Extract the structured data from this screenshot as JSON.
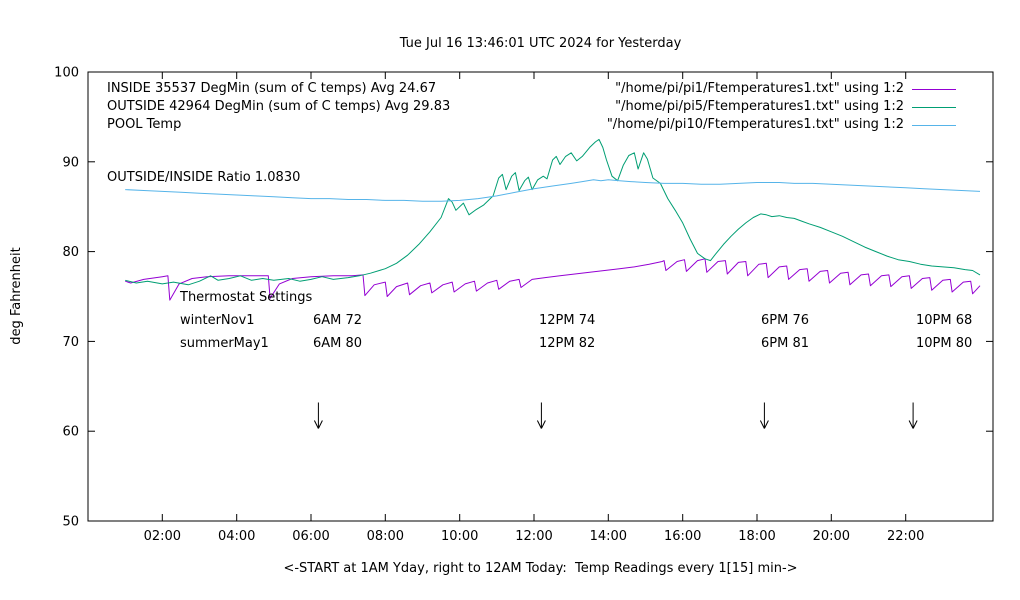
{
  "title": "Tue Jul 16 13:46:01 UTC 2024 for Yesterday",
  "ylabel": "deg Fahrenheit",
  "xlabel": "<-START at 1AM Yday, right to 12AM Today:  Temp Readings every 1[15] min->",
  "ratio_label": "OUTSIDE/INSIDE Ratio 1.0830",
  "legend": {
    "rows": [
      {
        "left": "INSIDE 35537 DegMin (sum of C temps) Avg 24.67",
        "right": "\"/home/pi/pi1/Ftemperatures1.txt\" using 1:2",
        "color": "#9400D3"
      },
      {
        "left": "OUTSIDE 42964 DegMin (sum of C temps) Avg 29.83",
        "right": "\"/home/pi/pi5/Ftemperatures1.txt\" using 1:2",
        "color": "#009E73"
      },
      {
        "left": "POOL Temp",
        "right": "\"/home/pi/pi10/Ftemperatures1.txt\" using 1:2",
        "color": "#56B4E9"
      }
    ]
  },
  "thermostat": {
    "heading": "Thermostat Settings",
    "rows": [
      {
        "name": "winterNov1",
        "settings": [
          "6AM 72",
          "12PM 74",
          "6PM 76",
          "10PM 68"
        ]
      },
      {
        "name": "summerMay1",
        "settings": [
          "6AM 80",
          "12PM 82",
          "6PM 81",
          "10PM 80"
        ]
      }
    ]
  },
  "chart_data": {
    "type": "line",
    "title": "Tue Jul 16 13:46:01 UTC 2024 for Yesterday",
    "xlabel": "<-START at 1AM Yday, right to 12AM Today:  Temp Readings every 1[15] min->",
    "ylabel": "deg Fahrenheit",
    "xlim": [
      0,
      24.35
    ],
    "ylim": [
      50,
      100
    ],
    "yticks": [
      50,
      60,
      70,
      80,
      90,
      100
    ],
    "xticks": [
      {
        "v": 2,
        "label": "02:00"
      },
      {
        "v": 4,
        "label": "04:00"
      },
      {
        "v": 6,
        "label": "06:00"
      },
      {
        "v": 8,
        "label": "08:00"
      },
      {
        "v": 10,
        "label": "10:00"
      },
      {
        "v": 12,
        "label": "12:00"
      },
      {
        "v": 14,
        "label": "14:00"
      },
      {
        "v": 16,
        "label": "16:00"
      },
      {
        "v": 18,
        "label": "18:00"
      },
      {
        "v": 20,
        "label": "20:00"
      },
      {
        "v": 22,
        "label": "22:00"
      }
    ],
    "grid": false,
    "legend_position": "top-right",
    "arrows": {
      "x_hours": [
        6.2,
        12.2,
        18.2,
        22.2
      ],
      "y_top": 63.2,
      "y_tip": 60.3
    },
    "series": [
      {
        "name": "INSIDE",
        "color": "#9400D3",
        "points": [
          [
            1.0,
            76.7
          ],
          [
            1.15,
            76.5
          ],
          [
            1.5,
            76.9
          ],
          [
            2.0,
            77.2
          ],
          [
            2.15,
            77.3
          ],
          [
            2.2,
            74.6
          ],
          [
            2.45,
            76.4
          ],
          [
            2.8,
            77.0
          ],
          [
            3.2,
            77.2
          ],
          [
            3.8,
            77.3
          ],
          [
            4.4,
            77.3
          ],
          [
            4.85,
            77.3
          ],
          [
            4.9,
            74.8
          ],
          [
            5.15,
            76.4
          ],
          [
            5.5,
            77.0
          ],
          [
            6.0,
            77.2
          ],
          [
            6.6,
            77.3
          ],
          [
            7.1,
            77.3
          ],
          [
            7.4,
            77.4
          ],
          [
            7.45,
            75.1
          ],
          [
            7.7,
            76.3
          ],
          [
            8.0,
            76.6
          ],
          [
            8.05,
            75.0
          ],
          [
            8.3,
            76.1
          ],
          [
            8.6,
            76.5
          ],
          [
            8.65,
            75.2
          ],
          [
            8.95,
            76.2
          ],
          [
            9.2,
            76.5
          ],
          [
            9.25,
            75.4
          ],
          [
            9.55,
            76.3
          ],
          [
            9.8,
            76.6
          ],
          [
            9.85,
            75.5
          ],
          [
            10.15,
            76.4
          ],
          [
            10.4,
            76.7
          ],
          [
            10.45,
            75.6
          ],
          [
            10.75,
            76.5
          ],
          [
            11.0,
            76.8
          ],
          [
            11.05,
            75.8
          ],
          [
            11.35,
            76.7
          ],
          [
            11.6,
            76.9
          ],
          [
            11.65,
            76.0
          ],
          [
            11.95,
            76.9
          ],
          [
            12.3,
            77.1
          ],
          [
            12.7,
            77.3
          ],
          [
            13.1,
            77.5
          ],
          [
            13.5,
            77.7
          ],
          [
            13.9,
            77.9
          ],
          [
            14.3,
            78.1
          ],
          [
            14.7,
            78.3
          ],
          [
            15.1,
            78.6
          ],
          [
            15.45,
            78.9
          ],
          [
            15.5,
            79.0
          ],
          [
            15.55,
            77.9
          ],
          [
            15.85,
            78.9
          ],
          [
            16.05,
            79.1
          ],
          [
            16.1,
            77.8
          ],
          [
            16.4,
            79.0
          ],
          [
            16.6,
            79.2
          ],
          [
            16.65,
            77.7
          ],
          [
            16.95,
            78.9
          ],
          [
            17.15,
            79.0
          ],
          [
            17.2,
            77.5
          ],
          [
            17.5,
            78.8
          ],
          [
            17.7,
            78.9
          ],
          [
            17.75,
            77.3
          ],
          [
            18.05,
            78.6
          ],
          [
            18.25,
            78.7
          ],
          [
            18.3,
            77.1
          ],
          [
            18.6,
            78.3
          ],
          [
            18.8,
            78.4
          ],
          [
            18.85,
            76.9
          ],
          [
            19.15,
            78.0
          ],
          [
            19.35,
            78.1
          ],
          [
            19.4,
            76.7
          ],
          [
            19.7,
            77.8
          ],
          [
            19.9,
            77.9
          ],
          [
            19.95,
            76.5
          ],
          [
            20.25,
            77.6
          ],
          [
            20.45,
            77.7
          ],
          [
            20.5,
            76.3
          ],
          [
            20.8,
            77.4
          ],
          [
            21.0,
            77.5
          ],
          [
            21.05,
            76.2
          ],
          [
            21.35,
            77.3
          ],
          [
            21.55,
            77.4
          ],
          [
            21.6,
            76.1
          ],
          [
            21.9,
            77.2
          ],
          [
            22.1,
            77.3
          ],
          [
            22.15,
            75.9
          ],
          [
            22.45,
            77.0
          ],
          [
            22.65,
            77.1
          ],
          [
            22.7,
            75.7
          ],
          [
            23.0,
            76.8
          ],
          [
            23.2,
            76.9
          ],
          [
            23.25,
            75.5
          ],
          [
            23.55,
            76.6
          ],
          [
            23.75,
            76.7
          ],
          [
            23.8,
            75.3
          ],
          [
            24.0,
            76.2
          ]
        ]
      },
      {
        "name": "OUTSIDE",
        "color": "#009E73",
        "points": [
          [
            1.0,
            76.8
          ],
          [
            1.3,
            76.5
          ],
          [
            1.6,
            76.7
          ],
          [
            2.0,
            76.4
          ],
          [
            2.3,
            76.6
          ],
          [
            2.7,
            76.3
          ],
          [
            3.0,
            76.7
          ],
          [
            3.3,
            77.3
          ],
          [
            3.5,
            76.8
          ],
          [
            3.8,
            77.0
          ],
          [
            4.1,
            77.3
          ],
          [
            4.4,
            76.8
          ],
          [
            4.7,
            77.0
          ],
          [
            5.0,
            76.8
          ],
          [
            5.4,
            77.0
          ],
          [
            5.7,
            76.7
          ],
          [
            6.0,
            76.9
          ],
          [
            6.3,
            77.2
          ],
          [
            6.6,
            76.9
          ],
          [
            7.0,
            77.1
          ],
          [
            7.3,
            77.3
          ],
          [
            7.6,
            77.6
          ],
          [
            8.0,
            78.1
          ],
          [
            8.3,
            78.7
          ],
          [
            8.6,
            79.6
          ],
          [
            8.9,
            80.8
          ],
          [
            9.2,
            82.2
          ],
          [
            9.5,
            83.8
          ],
          [
            9.7,
            85.9
          ],
          [
            9.8,
            85.5
          ],
          [
            9.9,
            84.6
          ],
          [
            10.1,
            85.4
          ],
          [
            10.25,
            84.1
          ],
          [
            10.45,
            84.7
          ],
          [
            10.65,
            85.2
          ],
          [
            10.9,
            86.2
          ],
          [
            11.05,
            88.2
          ],
          [
            11.15,
            88.6
          ],
          [
            11.25,
            86.9
          ],
          [
            11.4,
            88.4
          ],
          [
            11.5,
            88.8
          ],
          [
            11.6,
            86.8
          ],
          [
            11.75,
            87.9
          ],
          [
            11.85,
            88.3
          ],
          [
            11.95,
            86.9
          ],
          [
            12.1,
            88.0
          ],
          [
            12.25,
            88.4
          ],
          [
            12.35,
            88.1
          ],
          [
            12.5,
            90.2
          ],
          [
            12.6,
            90.6
          ],
          [
            12.7,
            89.7
          ],
          [
            12.85,
            90.6
          ],
          [
            13.0,
            91.0
          ],
          [
            13.15,
            90.1
          ],
          [
            13.3,
            90.6
          ],
          [
            13.5,
            91.6
          ],
          [
            13.65,
            92.2
          ],
          [
            13.75,
            92.5
          ],
          [
            13.85,
            91.6
          ],
          [
            13.95,
            90.2
          ],
          [
            14.1,
            88.4
          ],
          [
            14.25,
            87.9
          ],
          [
            14.4,
            89.6
          ],
          [
            14.55,
            90.7
          ],
          [
            14.7,
            91.0
          ],
          [
            14.8,
            89.2
          ],
          [
            14.95,
            91.0
          ],
          [
            15.05,
            90.3
          ],
          [
            15.2,
            88.2
          ],
          [
            15.4,
            87.6
          ],
          [
            15.6,
            85.9
          ],
          [
            15.8,
            84.6
          ],
          [
            16.0,
            83.2
          ],
          [
            16.2,
            81.4
          ],
          [
            16.4,
            79.8
          ],
          [
            16.6,
            79.2
          ],
          [
            16.75,
            79.0
          ],
          [
            16.9,
            79.8
          ],
          [
            17.1,
            80.8
          ],
          [
            17.3,
            81.7
          ],
          [
            17.5,
            82.5
          ],
          [
            17.7,
            83.2
          ],
          [
            17.9,
            83.8
          ],
          [
            18.1,
            84.2
          ],
          [
            18.25,
            84.1
          ],
          [
            18.4,
            83.9
          ],
          [
            18.6,
            84.0
          ],
          [
            18.8,
            83.8
          ],
          [
            19.0,
            83.7
          ],
          [
            19.2,
            83.4
          ],
          [
            19.4,
            83.1
          ],
          [
            19.7,
            82.7
          ],
          [
            20.0,
            82.2
          ],
          [
            20.3,
            81.7
          ],
          [
            20.6,
            81.1
          ],
          [
            20.9,
            80.5
          ],
          [
            21.2,
            80.0
          ],
          [
            21.5,
            79.5
          ],
          [
            21.8,
            79.1
          ],
          [
            22.1,
            78.9
          ],
          [
            22.4,
            78.6
          ],
          [
            22.7,
            78.4
          ],
          [
            23.0,
            78.3
          ],
          [
            23.3,
            78.2
          ],
          [
            23.6,
            78.0
          ],
          [
            23.8,
            77.9
          ],
          [
            24.0,
            77.4
          ]
        ]
      },
      {
        "name": "POOL",
        "color": "#56B4E9",
        "points": [
          [
            1.0,
            86.9
          ],
          [
            1.5,
            86.8
          ],
          [
            2.0,
            86.7
          ],
          [
            2.5,
            86.6
          ],
          [
            3.0,
            86.5
          ],
          [
            3.5,
            86.4
          ],
          [
            4.0,
            86.3
          ],
          [
            4.5,
            86.2
          ],
          [
            5.0,
            86.1
          ],
          [
            5.5,
            86.0
          ],
          [
            6.0,
            85.9
          ],
          [
            6.5,
            85.9
          ],
          [
            7.0,
            85.8
          ],
          [
            7.5,
            85.8
          ],
          [
            8.0,
            85.7
          ],
          [
            8.5,
            85.7
          ],
          [
            9.0,
            85.6
          ],
          [
            9.5,
            85.6
          ],
          [
            10.0,
            85.7
          ],
          [
            10.5,
            85.9
          ],
          [
            11.0,
            86.2
          ],
          [
            11.5,
            86.6
          ],
          [
            12.0,
            87.0
          ],
          [
            12.5,
            87.3
          ],
          [
            13.0,
            87.6
          ],
          [
            13.3,
            87.8
          ],
          [
            13.6,
            88.0
          ],
          [
            13.8,
            87.9
          ],
          [
            14.0,
            88.0
          ],
          [
            14.3,
            87.9
          ],
          [
            14.6,
            87.8
          ],
          [
            15.0,
            87.7
          ],
          [
            15.5,
            87.6
          ],
          [
            16.0,
            87.6
          ],
          [
            16.5,
            87.5
          ],
          [
            17.0,
            87.5
          ],
          [
            17.5,
            87.6
          ],
          [
            18.0,
            87.7
          ],
          [
            18.3,
            87.7
          ],
          [
            18.6,
            87.7
          ],
          [
            19.0,
            87.6
          ],
          [
            19.5,
            87.6
          ],
          [
            20.0,
            87.5
          ],
          [
            20.5,
            87.4
          ],
          [
            21.0,
            87.3
          ],
          [
            21.5,
            87.2
          ],
          [
            22.0,
            87.1
          ],
          [
            22.5,
            87.0
          ],
          [
            23.0,
            86.9
          ],
          [
            23.5,
            86.8
          ],
          [
            24.0,
            86.7
          ]
        ]
      }
    ]
  }
}
